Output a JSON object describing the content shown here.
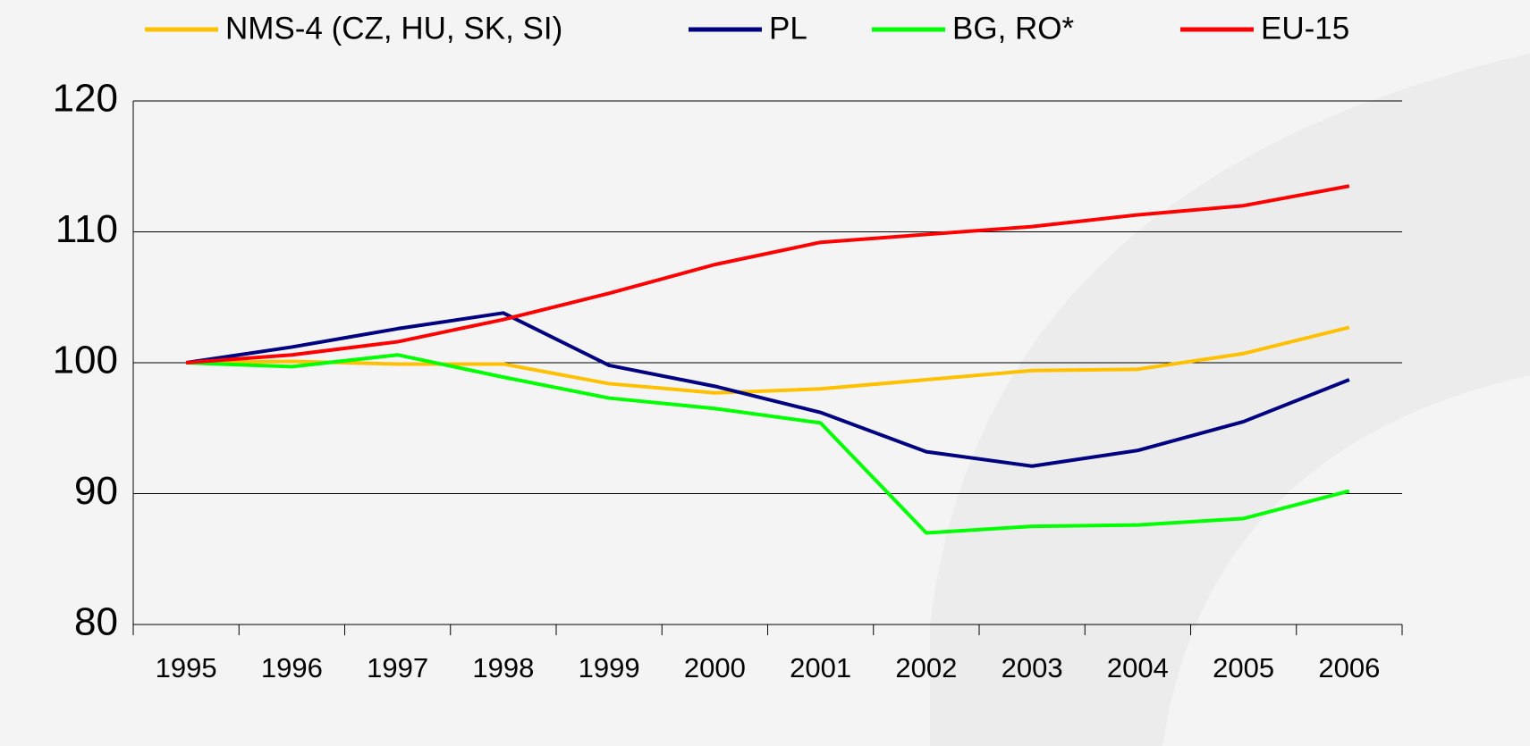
{
  "chart_data": {
    "type": "line",
    "categories": [
      "1995",
      "1996",
      "1997",
      "1998",
      "1999",
      "2000",
      "2001",
      "2002",
      "2003",
      "2004",
      "2005",
      "2006"
    ],
    "series": [
      {
        "name": "NMS-4 (CZ, HU, SK, SI)",
        "color": "#ffc000",
        "values": [
          100,
          100.1,
          99.9,
          99.9,
          98.4,
          97.7,
          98.0,
          98.7,
          99.4,
          99.5,
          100.7,
          102.7
        ]
      },
      {
        "name": "PL",
        "color": "#000080",
        "values": [
          100,
          101.2,
          102.6,
          103.8,
          99.8,
          98.2,
          96.2,
          93.2,
          92.1,
          93.3,
          95.5,
          98.7
        ]
      },
      {
        "name": "BG,  RO*",
        "color": "#00ff00",
        "values": [
          100,
          99.7,
          100.6,
          98.9,
          97.3,
          96.5,
          95.4,
          87.0,
          87.5,
          87.6,
          88.1,
          90.2
        ]
      },
      {
        "name": "EU-15",
        "color": "#ff0000",
        "values": [
          100,
          100.6,
          101.6,
          103.3,
          105.3,
          107.5,
          109.2,
          109.8,
          110.4,
          111.3,
          112.0,
          113.5
        ]
      }
    ],
    "ylim": [
      80,
      120
    ],
    "yticks": [
      80,
      90,
      100,
      110,
      120
    ],
    "grid": true,
    "legend": "top"
  }
}
